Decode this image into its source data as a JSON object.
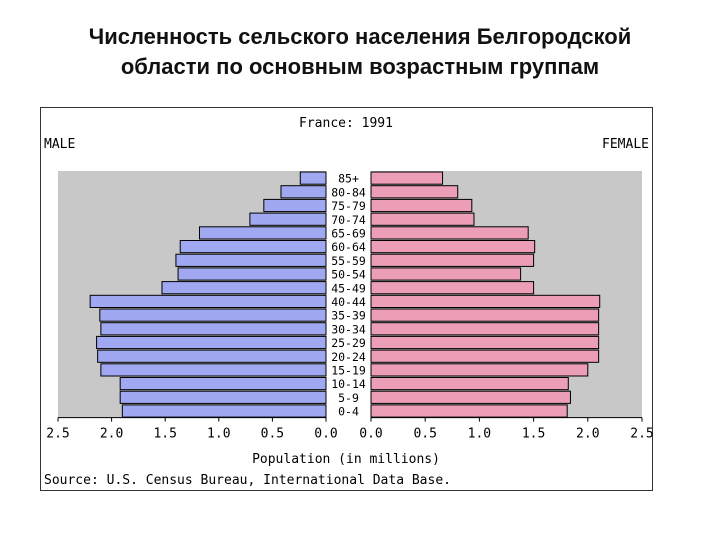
{
  "slide": {
    "title_line1": "Численность сельского населения Белгородской",
    "title_line2": "области по основным возрастным группам"
  },
  "chart_data": {
    "type": "bar",
    "subtype": "population-pyramid",
    "title": "France: 1991",
    "left_label": "MALE",
    "right_label": "FEMALE",
    "xlabel": "Population (in millions)",
    "source": "Source: U.S. Census Bureau, International Data Base.",
    "xlim": [
      0,
      2.5
    ],
    "x_ticks_left": [
      "2.5",
      "2.0",
      "1.5",
      "1.0",
      "0.5",
      "0.0"
    ],
    "x_ticks_right": [
      "0.0",
      "0.5",
      "1.0",
      "1.5",
      "2.0",
      "2.5"
    ],
    "categories": [
      "85+",
      "80-84",
      "75-79",
      "70-74",
      "65-69",
      "60-64",
      "55-59",
      "50-54",
      "45-49",
      "40-44",
      "35-39",
      "30-34",
      "25-29",
      "20-24",
      "15-19",
      "10-14",
      "5-9",
      "0-4"
    ],
    "series": [
      {
        "name": "MALE",
        "color": "#9fa8f0",
        "values": [
          0.24,
          0.42,
          0.58,
          0.71,
          1.18,
          1.36,
          1.4,
          1.38,
          1.53,
          2.2,
          2.11,
          2.1,
          2.14,
          2.13,
          2.1,
          1.92,
          1.92,
          1.9
        ]
      },
      {
        "name": "FEMALE",
        "color": "#ec9eb6",
        "values": [
          0.66,
          0.8,
          0.93,
          0.95,
          1.45,
          1.51,
          1.5,
          1.38,
          1.5,
          2.11,
          2.1,
          2.1,
          2.1,
          2.1,
          2.0,
          1.82,
          1.84,
          1.81
        ]
      }
    ],
    "grid": false,
    "plot_background": "#c8c8c8"
  }
}
